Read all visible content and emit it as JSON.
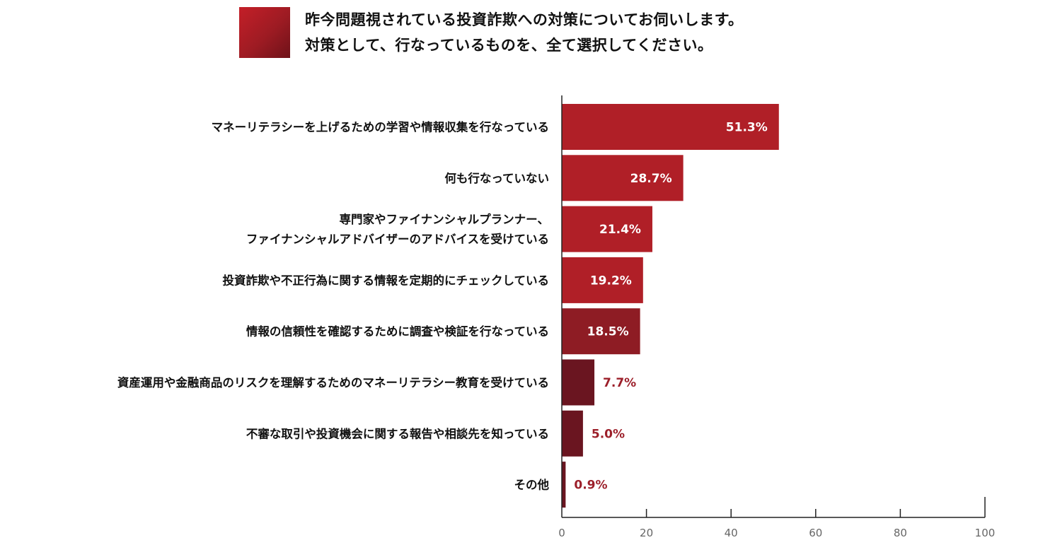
{
  "title_lines": [
    "昨今問題視されている投資詐欺への対策についてお伺いします。",
    "対策として、行なっているものを、全て選択してください。"
  ],
  "colors": {
    "bar_bright": "#b01f27",
    "bar_mid": "#8e1c24",
    "bar_dark": "#6a1520",
    "value_outside": "#9c1f2a",
    "value_inside": "#ffffff"
  },
  "chart_data": {
    "type": "bar",
    "orientation": "horizontal",
    "title": "",
    "xlabel": "",
    "ylabel": "",
    "xlim": [
      0,
      100
    ],
    "ticks": [
      "0",
      "20",
      "40",
      "60",
      "80",
      "100"
    ],
    "unit": "%",
    "categories": [
      [
        "マネーリテラシーを上げるための学習や情報収集を行なっている"
      ],
      [
        "何も行なっていない"
      ],
      [
        "専門家やファイナンシャルプランナー、",
        "ファイナンシャルアドバイザーのアドバイスを受けている"
      ],
      [
        "投資詐欺や不正行為に関する情報を定期的にチェックしている"
      ],
      [
        "情報の信頼性を確認するために調査や検証を行なっている"
      ],
      [
        "資産運用や金融商品のリスクを理解するためのマネーリテラシー教育を受けている"
      ],
      [
        "不審な取引や投資機会に関する報告や相談先を知っている"
      ],
      [
        "その他"
      ]
    ],
    "values": [
      51.3,
      28.7,
      21.4,
      19.2,
      18.5,
      7.7,
      5.0,
      0.9
    ],
    "value_labels": [
      "51.3%",
      "28.7%",
      "21.4%",
      "19.2%",
      "18.5%",
      "7.7%",
      "5.0%",
      "0.9%"
    ],
    "grid": false,
    "legend": "none"
  }
}
